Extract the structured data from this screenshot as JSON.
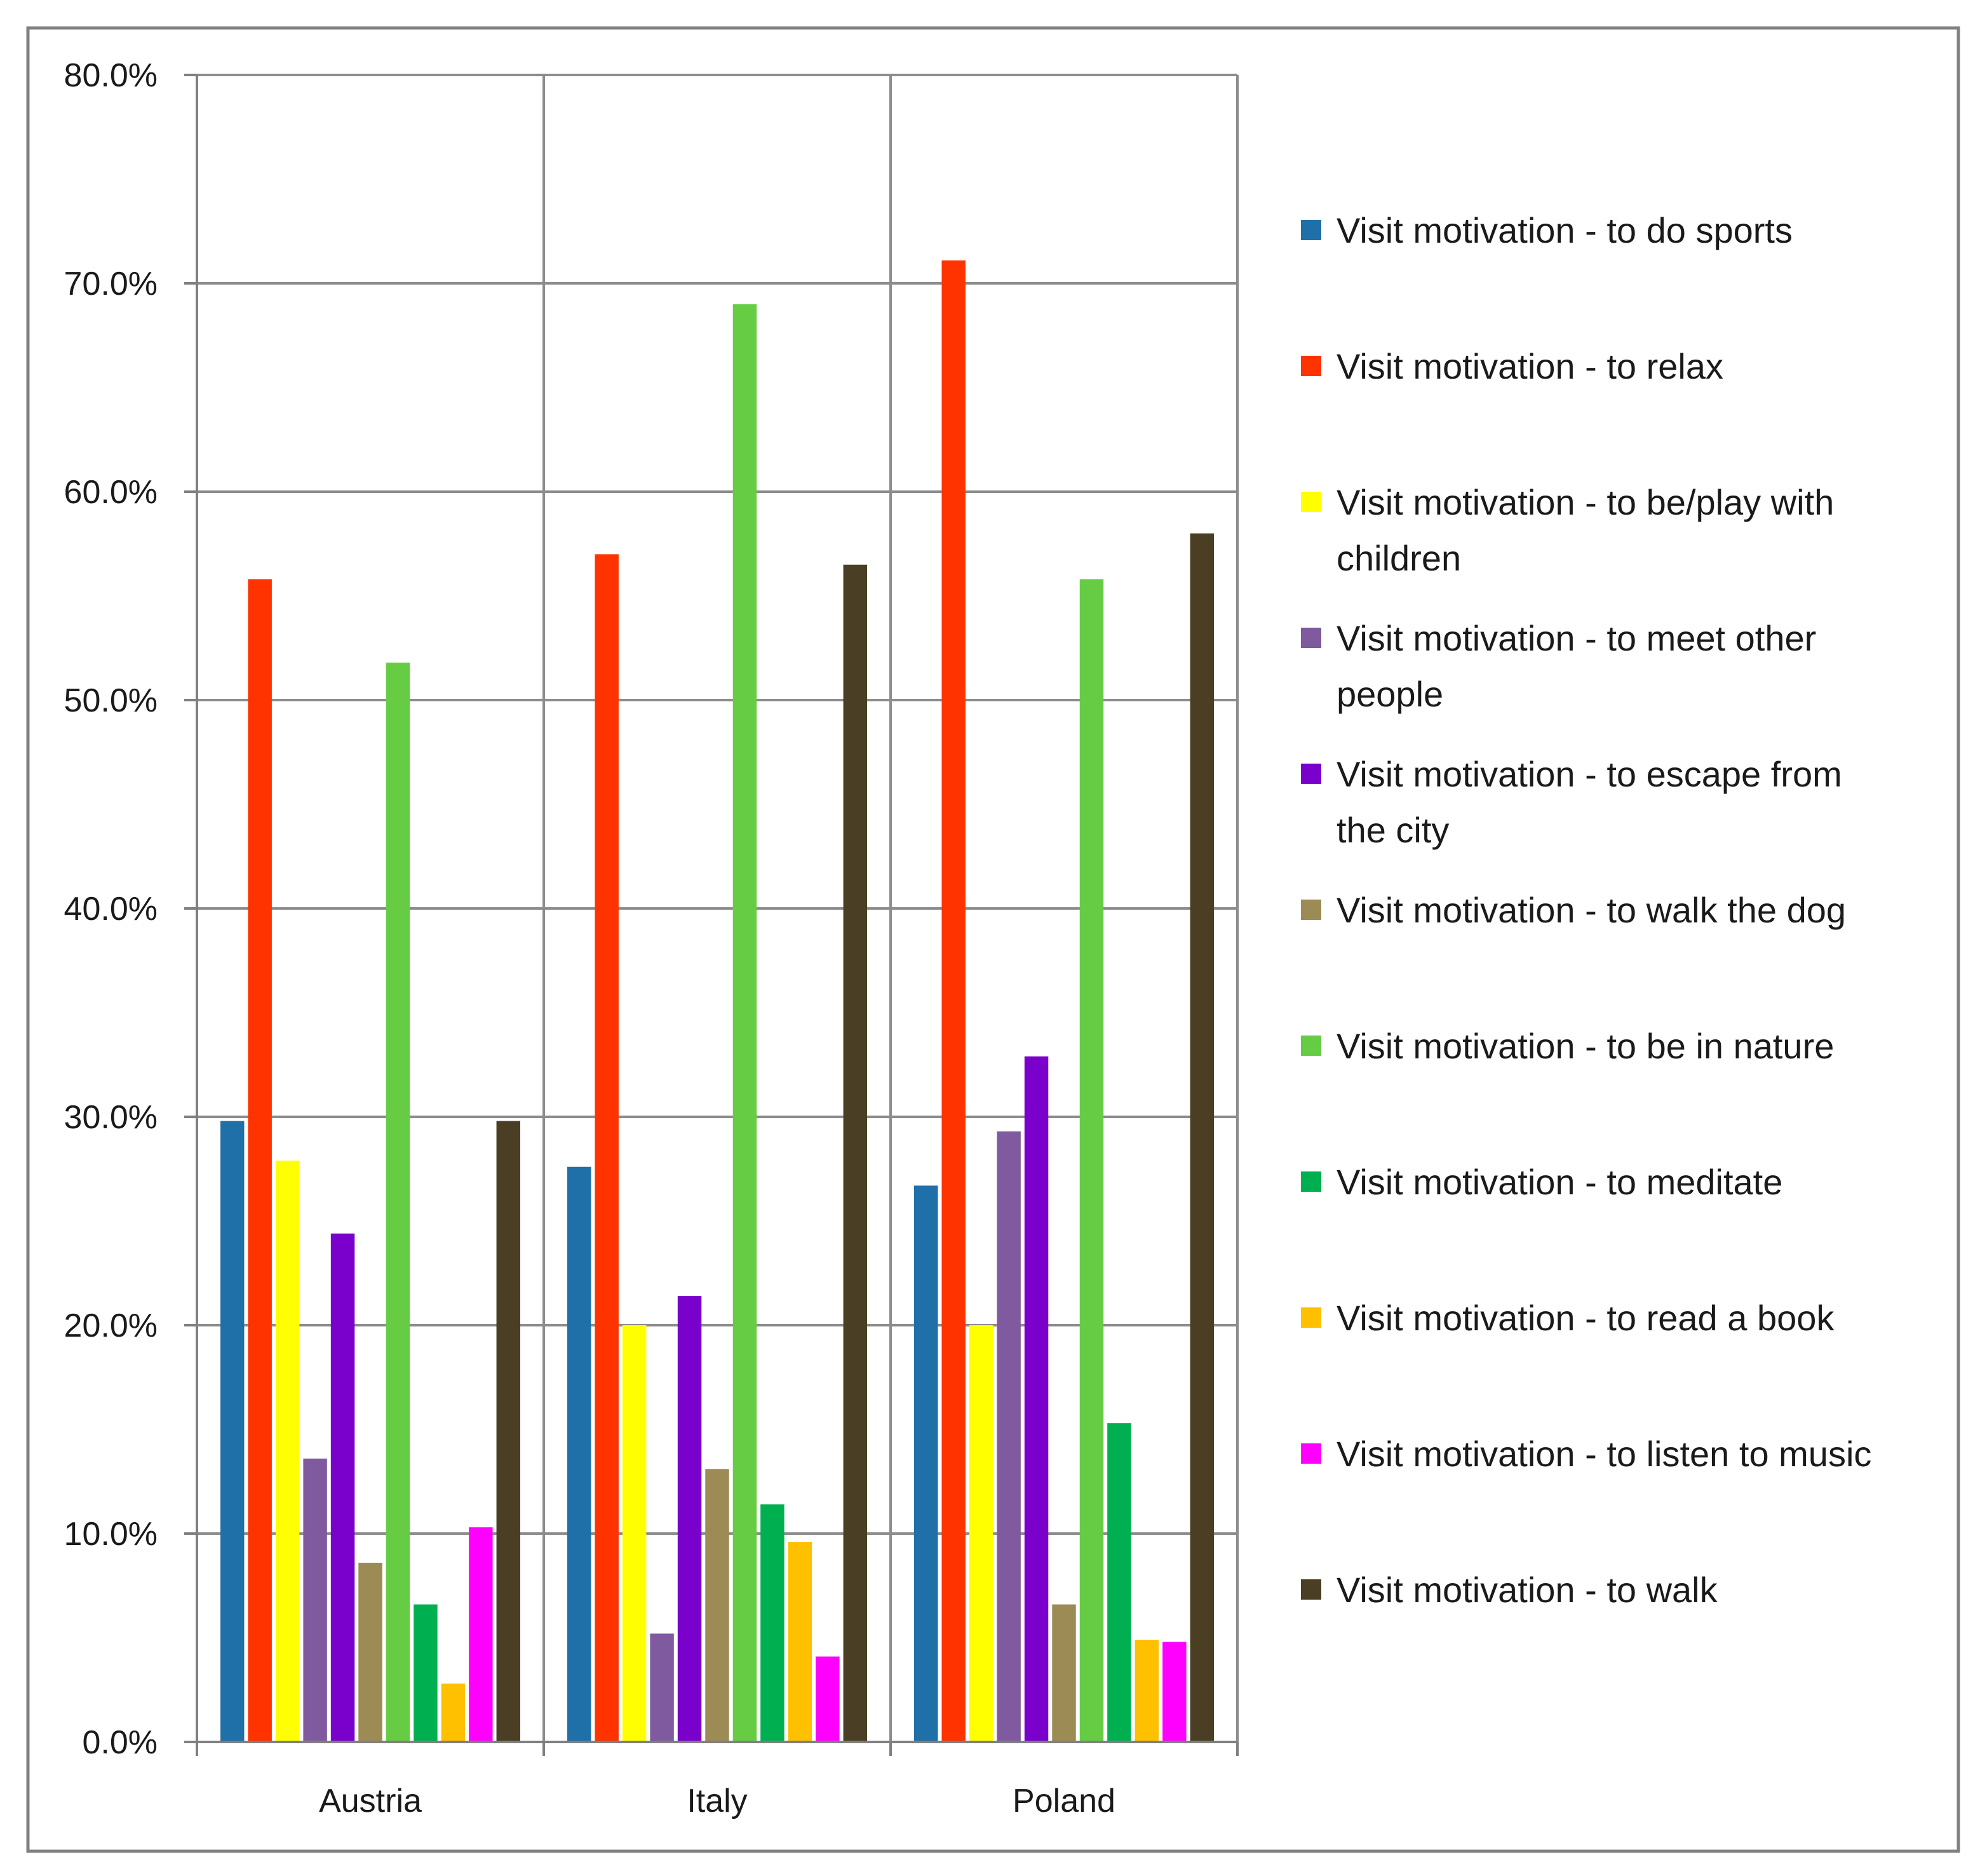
{
  "chart_data": {
    "type": "bar",
    "title": "",
    "xlabel": "",
    "ylabel": "",
    "ylim": [
      0,
      80
    ],
    "y_ticks": [
      "0.0%",
      "10.0%",
      "20.0%",
      "30.0%",
      "40.0%",
      "50.0%",
      "60.0%",
      "70.0%",
      "80.0%"
    ],
    "y_tick_values": [
      0,
      10,
      20,
      30,
      40,
      50,
      60,
      70,
      80
    ],
    "categories": [
      "Austria",
      "Italy",
      "Poland"
    ],
    "grid": true,
    "legend_position": "right",
    "series": [
      {
        "name": "Visit motivation - to do sports",
        "legend_lines": [
          "Visit motivation - to do sports"
        ],
        "color": "#1f6fa8",
        "values": [
          29.8,
          27.6,
          26.7
        ]
      },
      {
        "name": "Visit motivation - to relax",
        "legend_lines": [
          "Visit motivation - to relax"
        ],
        "color": "#ff3300",
        "values": [
          55.8,
          57.0,
          71.1
        ]
      },
      {
        "name": "Visit motivation - to be/play with children",
        "legend_lines": [
          "Visit motivation - to be/play with",
          "children"
        ],
        "color": "#ffff00",
        "values": [
          27.9,
          20.0,
          20.0
        ]
      },
      {
        "name": "Visit motivation - to meet other people",
        "legend_lines": [
          "Visit motivation - to meet other",
          "people"
        ],
        "color": "#7f5a9e",
        "values": [
          13.6,
          5.2,
          29.3
        ]
      },
      {
        "name": "Visit motivation - to escape from the city",
        "legend_lines": [
          "Visit motivation - to escape from",
          "the city"
        ],
        "color": "#7a00cc",
        "values": [
          24.4,
          21.4,
          32.9
        ]
      },
      {
        "name": "Visit motivation - to walk the dog",
        "legend_lines": [
          "Visit motivation - to walk the dog"
        ],
        "color": "#9c8b54",
        "values": [
          8.6,
          13.1,
          6.6
        ]
      },
      {
        "name": "Visit motivation - to be in nature",
        "legend_lines": [
          "Visit motivation - to be in nature"
        ],
        "color": "#66cc44",
        "values": [
          51.8,
          69.0,
          55.8
        ]
      },
      {
        "name": "Visit motivation - to meditate",
        "legend_lines": [
          "Visit motivation - to meditate"
        ],
        "color": "#00b050",
        "values": [
          6.6,
          11.4,
          15.3
        ]
      },
      {
        "name": "Visit motivation - to read a book",
        "legend_lines": [
          "Visit motivation - to read a book"
        ],
        "color": "#ffc000",
        "values": [
          2.8,
          9.6,
          4.9
        ]
      },
      {
        "name": "Visit motivation - to listen to music",
        "legend_lines": [
          "Visit motivation - to listen to music"
        ],
        "color": "#ff00ff",
        "values": [
          10.3,
          4.1,
          4.8
        ]
      },
      {
        "name": "Visit motivation - to walk",
        "legend_lines": [
          "Visit motivation - to walk"
        ],
        "color": "#4a3f24",
        "values": [
          29.8,
          56.5,
          58.0
        ]
      }
    ]
  },
  "colors": {
    "frame": "#808080",
    "grid": "#8c8c8c",
    "axis": "#7f7f7f",
    "text": "#1a1a1a"
  }
}
